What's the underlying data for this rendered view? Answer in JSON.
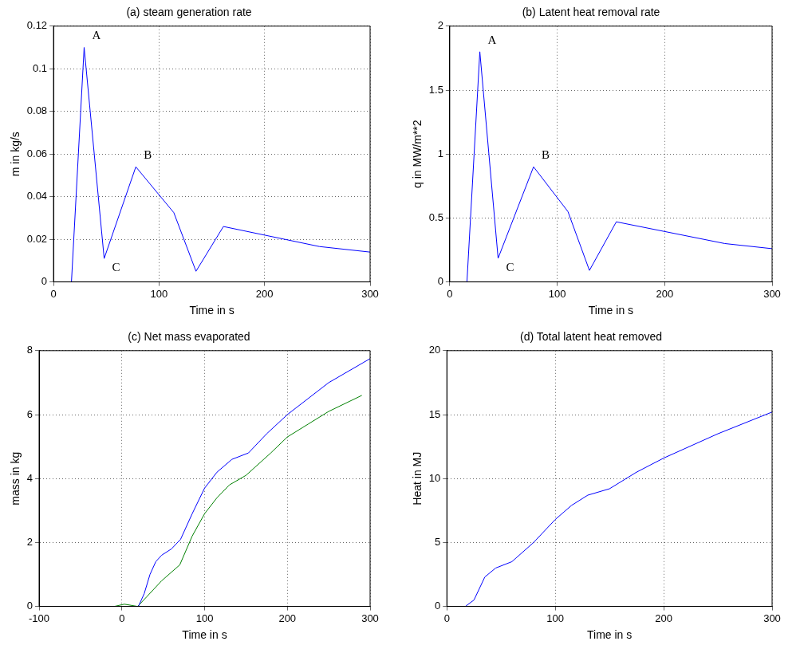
{
  "chart_data": [
    {
      "type": "line",
      "title": "(a) steam generation rate",
      "xlabel": "Time in s",
      "ylabel": "m in kg/s",
      "xlim": [
        0,
        300
      ],
      "xticks": [
        0,
        100,
        200,
        300
      ],
      "ylim": [
        0,
        0.12
      ],
      "yticks": [
        0,
        0.02,
        0.04,
        0.06,
        0.08,
        0.1,
        0.12
      ],
      "grid": true,
      "series": [
        {
          "color": "#0000ff",
          "x": [
            17,
            29,
            48,
            78,
            114,
            135,
            161,
            252,
            300
          ],
          "values": [
            0,
            0.11,
            0.011,
            0.054,
            0.0325,
            0.005,
            0.026,
            0.0166,
            0.014
          ]
        }
      ],
      "annotations": [
        {
          "text": "A",
          "x": 29,
          "y": 0.11
        },
        {
          "text": "B",
          "x": 78,
          "y": 0.054
        },
        {
          "text": "C",
          "x": 48,
          "y": 0.011
        }
      ]
    },
    {
      "type": "line",
      "title": "(b) Latent heat removal rate",
      "xlabel": "Time in s",
      "ylabel": "q in MW/m**2",
      "xlim": [
        0,
        300
      ],
      "xticks": [
        0,
        100,
        200,
        300
      ],
      "ylim": [
        0,
        2
      ],
      "yticks": [
        0,
        0.5,
        1,
        1.5,
        2
      ],
      "grid": true,
      "series": [
        {
          "color": "#0000ff",
          "x": [
            16,
            28,
            45,
            78,
            110,
            130,
            155,
            256,
            300
          ],
          "values": [
            0,
            1.8,
            0.185,
            0.9,
            0.55,
            0.09,
            0.47,
            0.3,
            0.26
          ]
        }
      ],
      "annotations": [
        {
          "text": "A",
          "x": 28,
          "y": 1.8
        },
        {
          "text": "B",
          "x": 78,
          "y": 0.9
        },
        {
          "text": "C",
          "x": 45,
          "y": 0.185
        }
      ]
    },
    {
      "type": "line",
      "title": "(c) Net mass evaporated",
      "xlabel": "Time in s",
      "ylabel": "mass in kg",
      "xlim": [
        -100,
        300
      ],
      "xticks": [
        -100,
        0,
        100,
        200,
        300
      ],
      "ylim": [
        0,
        8
      ],
      "yticks": [
        0,
        2,
        4,
        6,
        8
      ],
      "grid": true,
      "series": [
        {
          "color": "#0000ff",
          "x": [
            20,
            27,
            34,
            41,
            48,
            60,
            71,
            85,
            100,
            115,
            133,
            153,
            175,
            200,
            250,
            300
          ],
          "values": [
            0,
            0.4,
            1.0,
            1.4,
            1.6,
            1.8,
            2.1,
            2.9,
            3.7,
            4.2,
            4.6,
            4.8,
            5.4,
            6.0,
            7.0,
            7.75
          ]
        },
        {
          "color": "#008000",
          "x": [
            -9,
            3,
            19,
            30,
            48,
            70,
            85,
            100,
            115,
            130,
            150,
            180,
            200,
            225,
            250,
            290
          ],
          "values": [
            0,
            0.07,
            0,
            0.3,
            0.8,
            1.3,
            2.2,
            2.9,
            3.4,
            3.8,
            4.1,
            4.8,
            5.3,
            5.7,
            6.1,
            6.6
          ]
        }
      ]
    },
    {
      "type": "line",
      "title": "(d) Total latent heat removed",
      "xlabel": "Time in s",
      "ylabel": "Heat in MJ",
      "xlim": [
        0,
        300
      ],
      "xticks": [
        0,
        100,
        200,
        300
      ],
      "ylim": [
        0,
        20
      ],
      "yticks": [
        0,
        5,
        10,
        15,
        20
      ],
      "grid": true,
      "series": [
        {
          "color": "#0000ff",
          "x": [
            17,
            25,
            35,
            45,
            60,
            80,
            100,
            115,
            130,
            150,
            175,
            200,
            250,
            300
          ],
          "values": [
            0,
            0.5,
            2.3,
            3.0,
            3.5,
            5.0,
            6.8,
            7.9,
            8.7,
            9.2,
            10.5,
            11.6,
            13.5,
            15.2
          ]
        }
      ]
    }
  ]
}
